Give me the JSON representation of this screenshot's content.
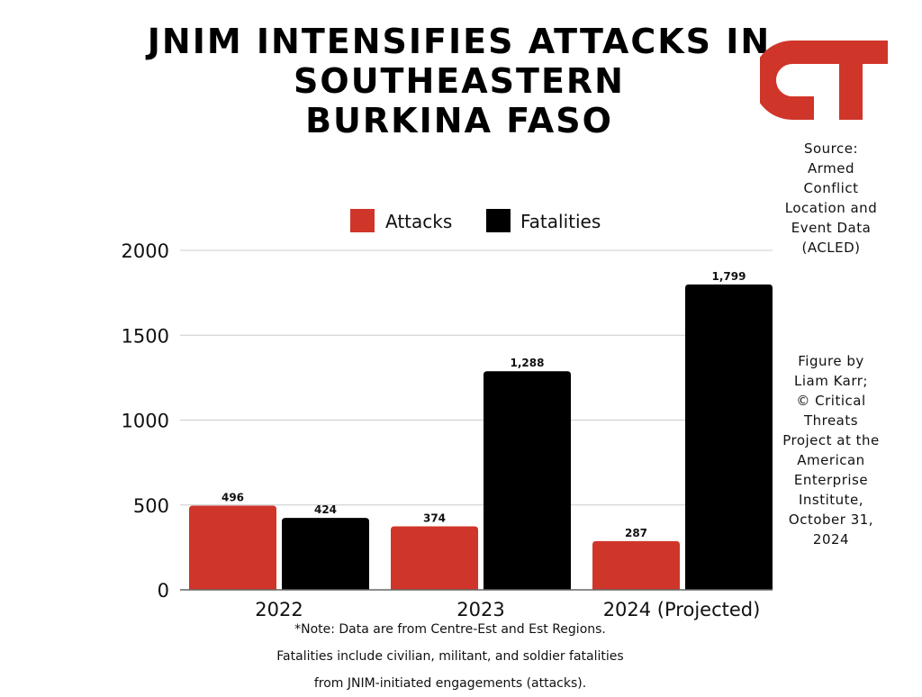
{
  "title_lines": [
    "JNIM INTENSIFIES ATTACKS IN",
    "SOUTHEASTERN",
    "BURKINA FASO"
  ],
  "logo_text": "CT",
  "source_lines": [
    "Source:",
    "Armed",
    "Conflict",
    "Location and",
    "Event Data",
    "(ACLED)"
  ],
  "credit_lines": [
    "Figure by",
    "Liam Karr;",
    "© Critical",
    "Threats",
    "Project at the",
    "American",
    "Enterprise",
    "Institute,",
    "October 31,",
    "2024"
  ],
  "footnote_lines": [
    "*Note: Data are from Centre-Est and Est Regions.",
    "Fatalities include civilian, militant, and soldier fatalities",
    "from JNIM-initiated engagements (attacks)."
  ],
  "colors": {
    "attacks": "#d0352a",
    "fatalities": "#000000",
    "logo": "#d0352a",
    "grid": "#cccccc"
  },
  "chart_data": {
    "type": "bar",
    "categories": [
      "2022",
      "2023",
      "2024 (Projected)"
    ],
    "series": [
      {
        "name": "Attacks",
        "values": [
          496,
          374,
          287
        ],
        "labels": [
          "496",
          "374",
          "287"
        ]
      },
      {
        "name": "Fatalities",
        "values": [
          424,
          1288,
          1799
        ],
        "labels": [
          "424",
          "1,288",
          "1,799"
        ]
      }
    ],
    "ylim": [
      0,
      2000
    ],
    "yticks": [
      0,
      500,
      1000,
      1500,
      2000
    ],
    "ytick_labels": [
      "0",
      "500",
      "1000",
      "1500",
      "2000"
    ],
    "grid": true,
    "legend": "top-center"
  }
}
